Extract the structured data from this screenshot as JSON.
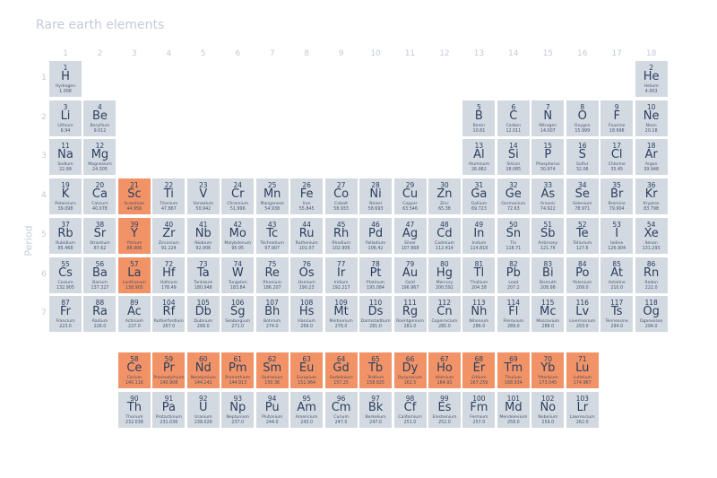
{
  "chart_data": {
    "type": "table",
    "title": "Rare earth elements",
    "ylabel": "Period",
    "group_labels": [
      "1",
      "2",
      "3",
      "4",
      "5",
      "6",
      "7",
      "8",
      "9",
      "10",
      "11",
      "12",
      "13",
      "14",
      "15",
      "16",
      "17",
      "18"
    ],
    "period_labels": [
      "1",
      "2",
      "3",
      "4",
      "5",
      "6",
      "7"
    ],
    "colors": {
      "default": "#d3d9e1",
      "highlight": "#f29367",
      "text": "#2a3f5f"
    },
    "highlighted": [
      21,
      39,
      57,
      58,
      59,
      60,
      61,
      62,
      63,
      64,
      65,
      66,
      67,
      68,
      69,
      70,
      71
    ],
    "elements": [
      [
        1,
        "H",
        "Hydrogen",
        "1.008",
        1,
        1
      ],
      [
        2,
        "He",
        "Helium",
        "4.003",
        1,
        18
      ],
      [
        3,
        "Li",
        "Lithium",
        "6.94",
        2,
        1
      ],
      [
        4,
        "Be",
        "Beryllium",
        "9.012",
        2,
        2
      ],
      [
        5,
        "B",
        "Boron",
        "10.81",
        2,
        13
      ],
      [
        6,
        "C",
        "Carbon",
        "12.011",
        2,
        14
      ],
      [
        7,
        "N",
        "Nitrogen",
        "14.007",
        2,
        15
      ],
      [
        8,
        "O",
        "Oxygen",
        "15.999",
        2,
        16
      ],
      [
        9,
        "F",
        "Fluorine",
        "18.998",
        2,
        17
      ],
      [
        10,
        "Ne",
        "Neon",
        "20.18",
        2,
        18
      ],
      [
        11,
        "Na",
        "Sodium",
        "22.99",
        3,
        1
      ],
      [
        12,
        "Mg",
        "Magnesium",
        "24.305",
        3,
        2
      ],
      [
        13,
        "Al",
        "Aluminum",
        "26.982",
        3,
        13
      ],
      [
        14,
        "Si",
        "Silicon",
        "28.085",
        3,
        14
      ],
      [
        15,
        "P",
        "Phosphorus",
        "30.974",
        3,
        15
      ],
      [
        16,
        "S",
        "Sulfur",
        "32.06",
        3,
        16
      ],
      [
        17,
        "Cl",
        "Chlorine",
        "35.45",
        3,
        17
      ],
      [
        18,
        "Ar",
        "Argon",
        "39.948",
        3,
        18
      ],
      [
        19,
        "K",
        "Potassium",
        "39.098",
        4,
        1
      ],
      [
        20,
        "Ca",
        "Calcium",
        "40.078",
        4,
        2
      ],
      [
        21,
        "Sc",
        "Scandium",
        "44.956",
        4,
        3
      ],
      [
        22,
        "Ti",
        "Titanium",
        "47.867",
        4,
        4
      ],
      [
        23,
        "V",
        "Vanadium",
        "50.942",
        4,
        5
      ],
      [
        24,
        "Cr",
        "Chromium",
        "51.996",
        4,
        6
      ],
      [
        25,
        "Mn",
        "Manganese",
        "54.938",
        4,
        7
      ],
      [
        26,
        "Fe",
        "Iron",
        "55.845",
        4,
        8
      ],
      [
        27,
        "Co",
        "Cobalt",
        "58.933",
        4,
        9
      ],
      [
        28,
        "Ni",
        "Nickel",
        "58.693",
        4,
        10
      ],
      [
        29,
        "Cu",
        "Copper",
        "63.546",
        4,
        11
      ],
      [
        30,
        "Zn",
        "Zinc",
        "65.38",
        4,
        12
      ],
      [
        31,
        "Ga",
        "Gallium",
        "69.723",
        4,
        13
      ],
      [
        32,
        "Ge",
        "Germanium",
        "72.63",
        4,
        14
      ],
      [
        33,
        "As",
        "Arsenic",
        "74.922",
        4,
        15
      ],
      [
        34,
        "Se",
        "Selenium",
        "78.971",
        4,
        16
      ],
      [
        35,
        "Br",
        "Bromine",
        "79.904",
        4,
        17
      ],
      [
        36,
        "Kr",
        "Krypton",
        "83.798",
        4,
        18
      ],
      [
        37,
        "Rb",
        "Rubidium",
        "85.468",
        5,
        1
      ],
      [
        38,
        "Sr",
        "Strontium",
        "87.62",
        5,
        2
      ],
      [
        39,
        "Y",
        "Yttrium",
        "88.906",
        5,
        3
      ],
      [
        40,
        "Zr",
        "Zirconium",
        "91.224",
        5,
        4
      ],
      [
        41,
        "Nb",
        "Niobium",
        "92.906",
        5,
        5
      ],
      [
        42,
        "Mo",
        "Molybdenum",
        "95.95",
        5,
        6
      ],
      [
        43,
        "Tc",
        "Technetium",
        "97.907",
        5,
        7
      ],
      [
        44,
        "Ru",
        "Ruthenium",
        "101.07",
        5,
        8
      ],
      [
        45,
        "Rh",
        "Rhodium",
        "102.906",
        5,
        9
      ],
      [
        46,
        "Pd",
        "Palladium",
        "106.42",
        5,
        10
      ],
      [
        47,
        "Ag",
        "Silver",
        "107.868",
        5,
        11
      ],
      [
        48,
        "Cd",
        "Cadmium",
        "112.414",
        5,
        12
      ],
      [
        49,
        "In",
        "Indium",
        "114.818",
        5,
        13
      ],
      [
        50,
        "Sn",
        "Tin",
        "118.71",
        5,
        14
      ],
      [
        51,
        "Sb",
        "Antimony",
        "121.76",
        5,
        15
      ],
      [
        52,
        "Te",
        "Tellurium",
        "127.6",
        5,
        16
      ],
      [
        53,
        "I",
        "Iodine",
        "126.904",
        5,
        17
      ],
      [
        54,
        "Xe",
        "Xenon",
        "131.293",
        5,
        18
      ],
      [
        55,
        "Cs",
        "Cesium",
        "132.905",
        6,
        1
      ],
      [
        56,
        "Ba",
        "Barium",
        "137.327",
        6,
        2
      ],
      [
        57,
        "La",
        "Lanthanum",
        "138.905",
        6,
        3
      ],
      [
        72,
        "Hf",
        "Hafnium",
        "178.49",
        6,
        4
      ],
      [
        73,
        "Ta",
        "Tantalum",
        "180.948",
        6,
        5
      ],
      [
        74,
        "W",
        "Tungsten",
        "183.84",
        6,
        6
      ],
      [
        75,
        "Re",
        "Rhenium",
        "186.207",
        6,
        7
      ],
      [
        76,
        "Os",
        "Osmium",
        "190.23",
        6,
        8
      ],
      [
        77,
        "Ir",
        "Iridium",
        "192.217",
        6,
        9
      ],
      [
        78,
        "Pt",
        "Platinum",
        "195.084",
        6,
        10
      ],
      [
        79,
        "Au",
        "Gold",
        "196.967",
        6,
        11
      ],
      [
        80,
        "Hg",
        "Mercury",
        "200.592",
        6,
        12
      ],
      [
        81,
        "Tl",
        "Thallium",
        "204.38",
        6,
        13
      ],
      [
        82,
        "Pb",
        "Lead",
        "207.2",
        6,
        14
      ],
      [
        83,
        "Bi",
        "Bismuth",
        "208.98",
        6,
        15
      ],
      [
        84,
        "Po",
        "Polonium",
        "209.0",
        6,
        16
      ],
      [
        85,
        "At",
        "Astatine",
        "210.0",
        6,
        17
      ],
      [
        86,
        "Rn",
        "Radon",
        "222.0",
        6,
        18
      ],
      [
        87,
        "Fr",
        "Francium",
        "223.0",
        7,
        1
      ],
      [
        88,
        "Ra",
        "Radium",
        "226.0",
        7,
        2
      ],
      [
        89,
        "Ac",
        "Actinium",
        "227.0",
        7,
        3
      ],
      [
        104,
        "Rf",
        "Rutherfordium",
        "267.0",
        7,
        4
      ],
      [
        105,
        "Db",
        "Dubnium",
        "268.0",
        7,
        5
      ],
      [
        106,
        "Sg",
        "Seaborgium",
        "271.0",
        7,
        6
      ],
      [
        107,
        "Bh",
        "Bohrium",
        "274.0",
        7,
        7
      ],
      [
        108,
        "Hs",
        "Hassium",
        "269.0",
        7,
        8
      ],
      [
        109,
        "Mt",
        "Meitnerium",
        "276.0",
        7,
        9
      ],
      [
        110,
        "Ds",
        "Darmstadtium",
        "281.0",
        7,
        10
      ],
      [
        111,
        "Rg",
        "Roentgenium",
        "281.0",
        7,
        11
      ],
      [
        112,
        "Cn",
        "Copernicium",
        "285.0",
        7,
        12
      ],
      [
        113,
        "Nh",
        "Nihonium",
        "286.0",
        7,
        13
      ],
      [
        114,
        "Fl",
        "Flerovium",
        "289.0",
        7,
        14
      ],
      [
        115,
        "Mc",
        "Moscovium",
        "288.0",
        7,
        15
      ],
      [
        116,
        "Lv",
        "Livermorium",
        "293.0",
        7,
        16
      ],
      [
        117,
        "Ts",
        "Tennessine",
        "294.0",
        7,
        17
      ],
      [
        118,
        "Og",
        "Oganesson",
        "294.0",
        7,
        18
      ]
    ],
    "lanthanides": [
      [
        58,
        "Ce",
        "Cerium",
        "140.116"
      ],
      [
        59,
        "Pr",
        "Praseodymium",
        "140.908"
      ],
      [
        60,
        "Nd",
        "Neodymium",
        "144.242"
      ],
      [
        61,
        "Pm",
        "Promethium",
        "144.913"
      ],
      [
        62,
        "Sm",
        "Samarium",
        "150.36"
      ],
      [
        63,
        "Eu",
        "Europium",
        "151.964"
      ],
      [
        64,
        "Gd",
        "Gadolinium",
        "157.25"
      ],
      [
        65,
        "Tb",
        "Terbium",
        "158.925"
      ],
      [
        66,
        "Dy",
        "Dysprosium",
        "162.5"
      ],
      [
        67,
        "Ho",
        "Holmium",
        "164.93"
      ],
      [
        68,
        "Er",
        "Erbium",
        "167.259"
      ],
      [
        69,
        "Tm",
        "Thulium",
        "168.934"
      ],
      [
        70,
        "Yb",
        "Ytterbium",
        "173.045"
      ],
      [
        71,
        "Lu",
        "Lutetium",
        "174.967"
      ]
    ],
    "actinides": [
      [
        90,
        "Th",
        "Thorium",
        "232.038"
      ],
      [
        91,
        "Pa",
        "Protactinium",
        "231.036"
      ],
      [
        92,
        "U",
        "Uranium",
        "238.029"
      ],
      [
        93,
        "Np",
        "Neptunium",
        "237.0"
      ],
      [
        94,
        "Pu",
        "Plutonium",
        "244.0"
      ],
      [
        95,
        "Am",
        "Americium",
        "243.0"
      ],
      [
        96,
        "Cm",
        "Curium",
        "247.0"
      ],
      [
        97,
        "Bk",
        "Berkelium",
        "247.0"
      ],
      [
        98,
        "Cf",
        "Californium",
        "251.0"
      ],
      [
        99,
        "Es",
        "Einsteinium",
        "252.0"
      ],
      [
        100,
        "Fm",
        "Fermium",
        "257.0"
      ],
      [
        101,
        "Md",
        "Mendelevium",
        "258.0"
      ],
      [
        102,
        "No",
        "Nobelium",
        "259.0"
      ],
      [
        103,
        "Lr",
        "Lawrencium",
        "262.0"
      ]
    ]
  }
}
